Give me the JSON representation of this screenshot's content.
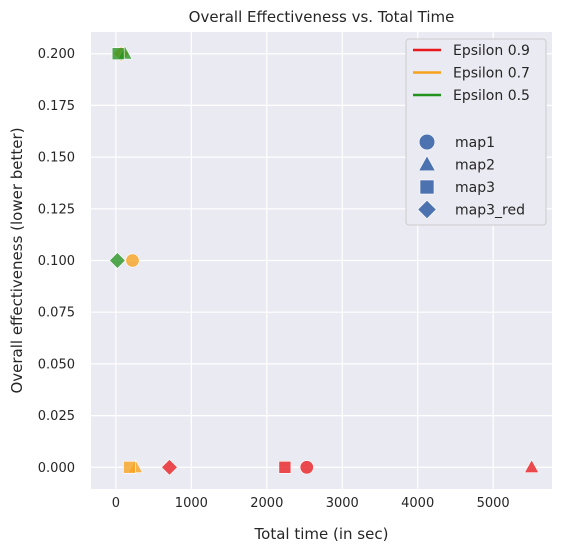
{
  "chart_data": {
    "type": "scatter",
    "title": "Overall Effectiveness vs. Total Time",
    "xlabel": "Total time (in sec)",
    "ylabel": "Overall effectiveness (lower better)",
    "xlim": [
      -330,
      5780
    ],
    "ylim": [
      -0.0105,
      0.2105
    ],
    "xticks": [
      0,
      1000,
      2000,
      3000,
      4000,
      5000
    ],
    "xtick_labels": [
      "0",
      "1000",
      "2000",
      "3000",
      "4000",
      "5000"
    ],
    "yticks": [
      0.0,
      0.025,
      0.05,
      0.075,
      0.1,
      0.125,
      0.15,
      0.175,
      0.2
    ],
    "ytick_labels": [
      "0.000",
      "0.025",
      "0.050",
      "0.075",
      "0.100",
      "0.125",
      "0.150",
      "0.175",
      "0.200"
    ],
    "grid": true,
    "legend_position": "top-right",
    "color_legend": [
      {
        "name": "Epsilon 0.9",
        "color": "#e8191d"
      },
      {
        "name": "Epsilon 0.7",
        "color": "#f7a21d"
      },
      {
        "name": "Epsilon 0.5",
        "color": "#24921f"
      }
    ],
    "marker_legend": [
      {
        "name": "map1",
        "marker": "circle"
      },
      {
        "name": "map2",
        "marker": "triangle"
      },
      {
        "name": "map3",
        "marker": "square"
      },
      {
        "name": "map3_red",
        "marker": "diamond"
      }
    ],
    "marker_legend_color": "#4c72b0",
    "points": [
      {
        "epsilon": "Epsilon 0.9",
        "map": "map1",
        "x": 2530,
        "y": 0.0
      },
      {
        "epsilon": "Epsilon 0.9",
        "map": "map2",
        "x": 5510,
        "y": 0.0
      },
      {
        "epsilon": "Epsilon 0.9",
        "map": "map3",
        "x": 2240,
        "y": 0.0
      },
      {
        "epsilon": "Epsilon 0.9",
        "map": "map3_red",
        "x": 710,
        "y": 0.0
      },
      {
        "epsilon": "Epsilon 0.7",
        "map": "map1",
        "x": 220,
        "y": 0.1
      },
      {
        "epsilon": "Epsilon 0.7",
        "map": "map2",
        "x": 260,
        "y": 0.0
      },
      {
        "epsilon": "Epsilon 0.7",
        "map": "map3",
        "x": 180,
        "y": 0.0
      },
      {
        "epsilon": "Epsilon 0.7",
        "map": "map3_red",
        "x": 70,
        "y": 0.2
      },
      {
        "epsilon": "Epsilon 0.5",
        "map": "map2",
        "x": 120,
        "y": 0.2
      },
      {
        "epsilon": "Epsilon 0.5",
        "map": "map3",
        "x": 30,
        "y": 0.2
      },
      {
        "epsilon": "Epsilon 0.5",
        "map": "map3_red",
        "x": 20,
        "y": 0.1
      }
    ]
  }
}
